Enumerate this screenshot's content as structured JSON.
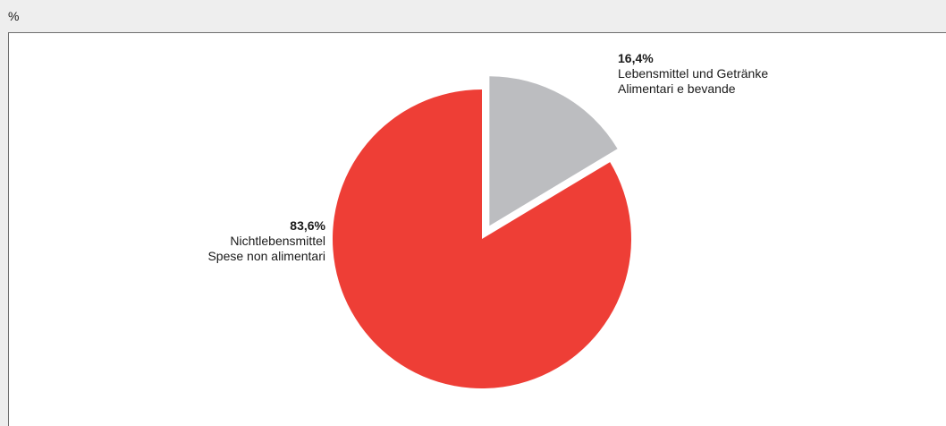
{
  "unit_label": "%",
  "chart_data": {
    "type": "pie",
    "slices": [
      {
        "value": 16.4,
        "label_pct": "16,4%",
        "label_de": "Lebensmittel und Getränke",
        "label_it": "Alimentari e bevande",
        "color": "#bcbdc0",
        "exploded": true
      },
      {
        "value": 83.6,
        "label_pct": "83,6%",
        "label_de": "Nichtlebensmittel",
        "label_it": "Spese non alimentari",
        "color": "#ee3e36",
        "exploded": false
      }
    ]
  }
}
